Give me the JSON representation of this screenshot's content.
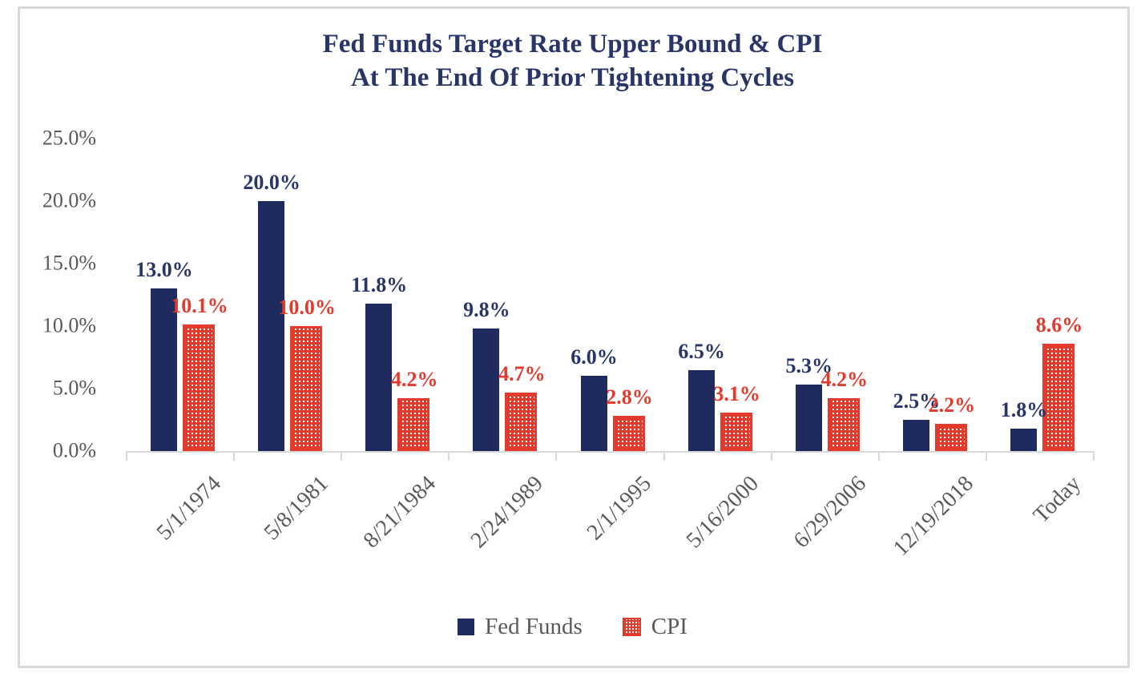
{
  "title": {
    "line1": "Fed Funds Target Rate Upper Bound & CPI",
    "line2": "At The End Of Prior Tightening Cycles"
  },
  "colors": {
    "fed_funds_bar": "#1f2a5e",
    "navy_text": "#293569",
    "cpi_red": "#e23b2e",
    "axis_text": "#595959",
    "axis_line": "#d9d9d9"
  },
  "chart_data": {
    "type": "bar",
    "title": "Fed Funds Target Rate Upper Bound & CPI At The End Of Prior Tightening Cycles",
    "categories": [
      "5/1/1974",
      "5/8/1981",
      "8/21/1984",
      "2/24/1989",
      "2/1/1995",
      "5/16/2000",
      "6/29/2006",
      "12/19/2018",
      "Today"
    ],
    "series": [
      {
        "name": "Fed Funds",
        "color": "#1f2a5e",
        "values": [
          13.0,
          20.0,
          11.8,
          9.8,
          6.0,
          6.5,
          5.3,
          2.5,
          1.8
        ],
        "data_labels": [
          "13.0%",
          "20.0%",
          "11.8%",
          "9.8%",
          "6.0%",
          "6.5%",
          "5.3%",
          "2.5%",
          "1.8%"
        ]
      },
      {
        "name": "CPI",
        "color": "#e23b2e",
        "values": [
          10.1,
          10.0,
          4.2,
          4.7,
          2.8,
          3.1,
          4.2,
          2.2,
          8.6
        ],
        "data_labels": [
          "10.1%",
          "10.0%",
          "4.2%",
          "4.7%",
          "2.8%",
          "3.1%",
          "4.2%",
          "2.2%",
          "8.6%"
        ]
      }
    ],
    "y_axis": {
      "min": 0,
      "max": 25,
      "tick_step": 5,
      "tick_labels": [
        "25.0%",
        "20.0%",
        "15.0%",
        "10.0%",
        "5.0%",
        "0.0%"
      ]
    },
    "xlabel": "",
    "ylabel": "",
    "grid": false,
    "legend_position": "bottom"
  }
}
